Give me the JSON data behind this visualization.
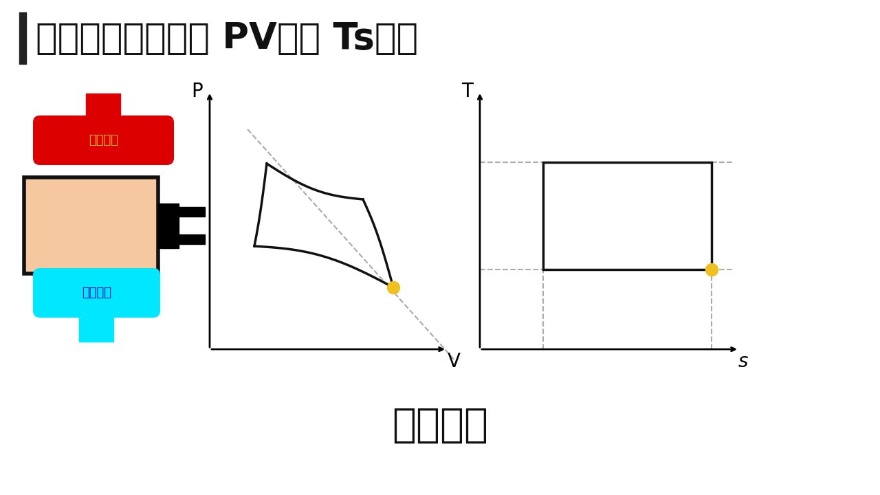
{
  "title": "カルノーサイクル PV線図 Ts線図",
  "title_bar_color": "#222222",
  "subtitle": "等温圧縮",
  "bg_color": "#ffffff",
  "high_temp_label": "高温熱源",
  "low_temp_label": "低温熱源",
  "high_temp_color": "#dd0000",
  "low_temp_color": "#00e8ff",
  "engine_body_color": "#f5c8a0",
  "engine_body_border": "#111111",
  "pv_axis_label_p": "P",
  "pv_axis_label_v": "V",
  "ts_axis_label_t": "T",
  "ts_axis_label_s": "s",
  "dashed_color": "#aaaaaa",
  "cycle_color": "#111111",
  "highlight_dot_color": "#f0c020",
  "label_color_high": "#f0c020",
  "label_color_low": "#0000cc"
}
